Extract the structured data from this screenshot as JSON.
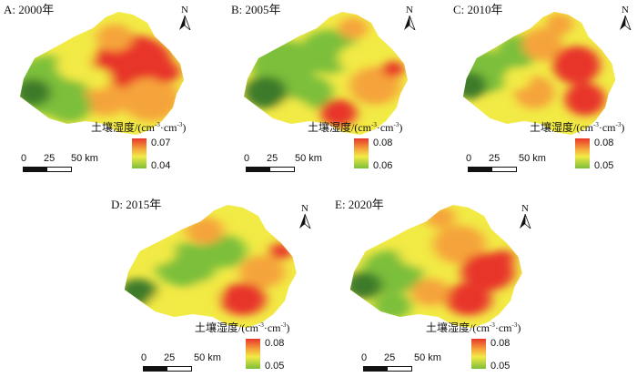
{
  "panels": [
    {
      "title": "A: 2000年",
      "legend_max": "0.07",
      "legend_min": "0.04"
    },
    {
      "title": "B: 2005年",
      "legend_max": "0.08",
      "legend_min": "0.06"
    },
    {
      "title": "C: 2010年",
      "legend_max": "0.08",
      "legend_min": "0.05"
    },
    {
      "title": "D: 2015年",
      "legend_max": "0.08",
      "legend_min": "0.05"
    },
    {
      "title": "E: 2020年",
      "legend_max": "0.08",
      "legend_min": "0.05"
    }
  ],
  "legend": {
    "title_prefix": "土壤湿度/(cm",
    "title_mid": "·cm",
    "title_suffix": ")",
    "exp": "-3"
  },
  "scale": {
    "tick0": "0",
    "tick1": "25",
    "tick2": "50 km"
  },
  "north_label": "N",
  "colors": {
    "high": "#e8362a",
    "mid_high": "#f5a43a",
    "mid": "#f2ea45",
    "low": "#7cbf3a",
    "low_dark": "#3e7a2a"
  }
}
